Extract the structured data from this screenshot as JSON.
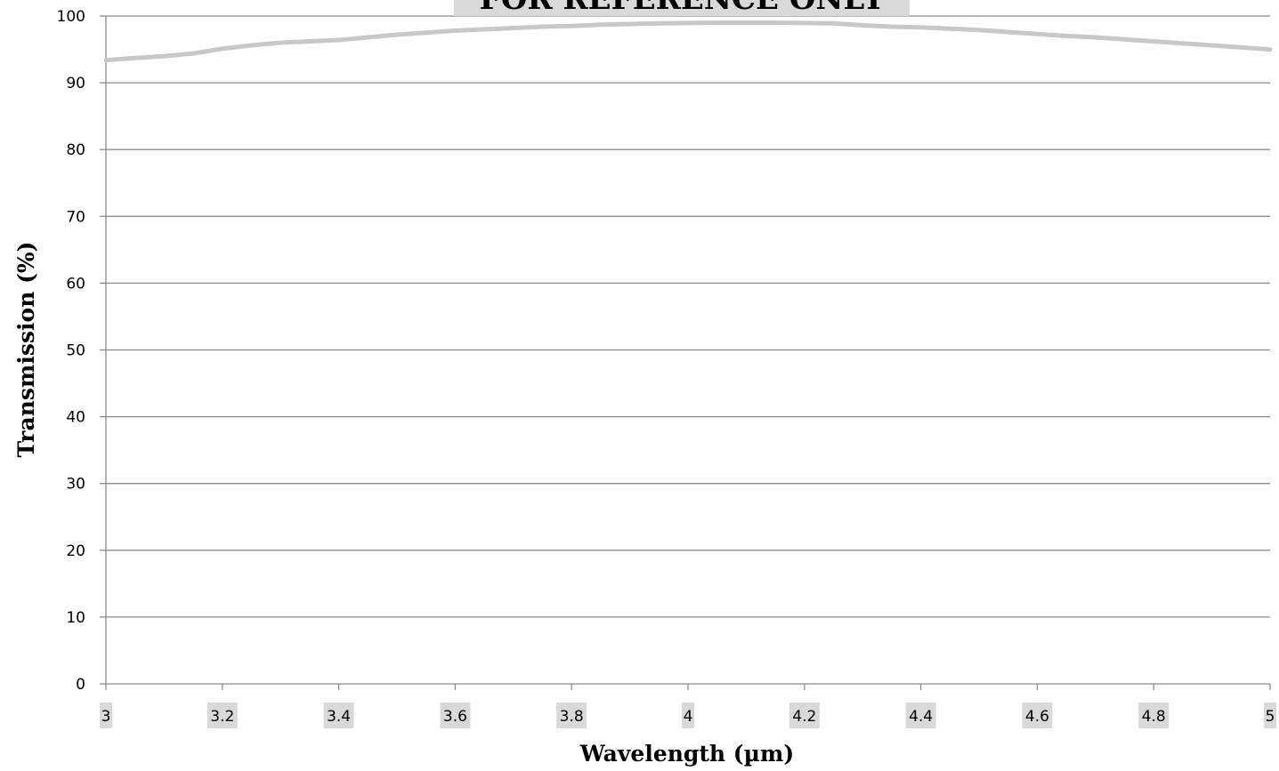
{
  "chart_data": {
    "type": "line",
    "title": "",
    "watermark": "FOR REFERENCE ONLY",
    "xlabel": "Wavelength (µm)",
    "ylabel": "Transmission (%)",
    "xlim": [
      3,
      5
    ],
    "ylim": [
      0,
      100
    ],
    "x_ticks": [
      "3",
      "3.2",
      "3.4",
      "3.6",
      "3.8",
      "4",
      "4.2",
      "4.4",
      "4.6",
      "4.8",
      "5"
    ],
    "y_ticks": [
      "0",
      "10",
      "20",
      "30",
      "40",
      "50",
      "60",
      "70",
      "80",
      "90",
      "100"
    ],
    "grid": "horizontal",
    "line_color": "#c8c8c8",
    "tick_label_bg": "#d9d9d9",
    "series": [
      {
        "x": [
          3.0,
          3.05,
          3.1,
          3.15,
          3.2,
          3.25,
          3.3,
          3.35,
          3.4,
          3.45,
          3.5,
          3.55,
          3.6,
          3.65,
          3.7,
          3.75,
          3.8,
          3.85,
          3.9,
          3.95,
          4.0,
          4.05,
          4.1,
          4.15,
          4.2,
          4.25,
          4.3,
          4.35,
          4.4,
          4.45,
          4.5,
          4.55,
          4.6,
          4.65,
          4.7,
          4.75,
          4.8,
          4.85,
          4.9,
          4.95,
          5.0
        ],
        "y": [
          93.4,
          93.7,
          94.0,
          94.4,
          95.1,
          95.6,
          96.0,
          96.2,
          96.4,
          96.8,
          97.2,
          97.5,
          97.8,
          98.0,
          98.2,
          98.4,
          98.5,
          98.7,
          98.8,
          98.9,
          98.95,
          99.0,
          99.0,
          99.0,
          98.95,
          98.9,
          98.6,
          98.4,
          98.3,
          98.1,
          97.9,
          97.6,
          97.3,
          97.0,
          96.8,
          96.5,
          96.2,
          95.9,
          95.6,
          95.3,
          95.0
        ]
      }
    ]
  }
}
